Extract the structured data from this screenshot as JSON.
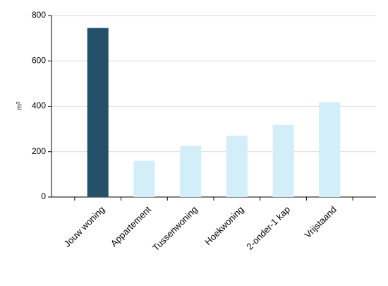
{
  "chart_data": {
    "type": "bar",
    "y_label": "m³",
    "categories": [
      "Jouw woning",
      "Appartement",
      "Tussenwoning",
      "Hoekwoning",
      "2-onder-1 kap",
      "Vrijstaand"
    ],
    "values": [
      745,
      160,
      225,
      270,
      318,
      418
    ],
    "colors": [
      "#24506a",
      "#d2eef8",
      "#d2eef8",
      "#d2eef8",
      "#d2eef8",
      "#d2eef8"
    ],
    "ylim": [
      0,
      800
    ],
    "yticks": [
      0,
      200,
      400,
      600,
      800
    ],
    "grid": true
  }
}
